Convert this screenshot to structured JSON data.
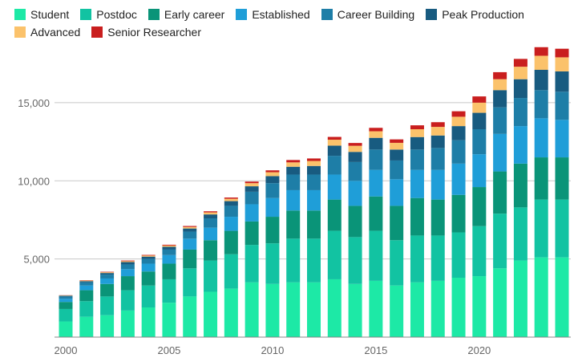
{
  "chart_data": {
    "type": "bar",
    "stacked": true,
    "title": "",
    "xlabel": "",
    "ylabel": "",
    "ylim": [
      0,
      19000
    ],
    "yticks": [
      5000,
      10000,
      15000
    ],
    "ytick_labels": [
      "5,000",
      "10,000",
      "15,000"
    ],
    "xticks": [
      2000,
      2005,
      2010,
      2015,
      2020
    ],
    "xtick_labels": [
      "2000",
      "2005",
      "2010",
      "2015",
      "2020"
    ],
    "grid": "horizontal",
    "legend_position": "top-left",
    "x": [
      2000,
      2001,
      2002,
      2003,
      2004,
      2005,
      2006,
      2007,
      2008,
      2009,
      2010,
      2011,
      2012,
      2013,
      2014,
      2015,
      2016,
      2017,
      2018,
      2019,
      2020,
      2021,
      2022,
      2023,
      2024
    ],
    "series": [
      {
        "name": "Student",
        "color": "#1de9a6",
        "values": [
          1000,
          1300,
          1400,
          1700,
          1900,
          2200,
          2600,
          2900,
          3100,
          3500,
          3400,
          3500,
          3500,
          3700,
          3400,
          3600,
          3300,
          3500,
          3600,
          3800,
          3900,
          4400,
          4900,
          5100,
          5100
        ]
      },
      {
        "name": "Postdoc",
        "color": "#12c3a2",
        "values": [
          800,
          1000,
          1200,
          1300,
          1400,
          1500,
          1800,
          2000,
          2200,
          2400,
          2600,
          2800,
          2800,
          3100,
          3000,
          3200,
          2900,
          3000,
          2900,
          2900,
          3200,
          3500,
          3400,
          3700,
          3700
        ]
      },
      {
        "name": "Early career",
        "color": "#0a9478",
        "values": [
          450,
          700,
          800,
          900,
          900,
          1000,
          1200,
          1300,
          1500,
          1500,
          1700,
          1800,
          1800,
          2000,
          2000,
          2200,
          2200,
          2400,
          2300,
          2400,
          2500,
          2700,
          2800,
          2700,
          2700
        ]
      },
      {
        "name": "Established",
        "color": "#1f9ed8",
        "values": [
          200,
          300,
          350,
          450,
          500,
          550,
          700,
          800,
          900,
          1100,
          1200,
          1300,
          1300,
          1600,
          1600,
          1700,
          1700,
          1800,
          1900,
          2000,
          2100,
          2400,
          2400,
          2500,
          2400
        ]
      },
      {
        "name": "Career Building",
        "color": "#1e7ea7",
        "values": [
          150,
          200,
          250,
          300,
          300,
          350,
          450,
          600,
          700,
          800,
          950,
          1000,
          1000,
          1200,
          1200,
          1300,
          1200,
          1300,
          1400,
          1500,
          1600,
          1700,
          1800,
          1800,
          1800
        ]
      },
      {
        "name": "Peak Production",
        "color": "#185b80",
        "values": [
          50,
          80,
          100,
          150,
          150,
          180,
          200,
          250,
          300,
          350,
          450,
          500,
          550,
          650,
          650,
          750,
          700,
          800,
          800,
          900,
          1050,
          1100,
          1200,
          1300,
          1300
        ]
      },
      {
        "name": "Advanced",
        "color": "#fbc26b",
        "values": [
          20,
          40,
          50,
          60,
          70,
          80,
          100,
          130,
          150,
          200,
          250,
          280,
          320,
          380,
          390,
          420,
          430,
          500,
          550,
          600,
          650,
          700,
          800,
          900,
          900
        ]
      },
      {
        "name": "Senior Researcher",
        "color": "#c91e1e",
        "values": [
          10,
          20,
          30,
          40,
          40,
          50,
          60,
          70,
          80,
          100,
          120,
          150,
          160,
          180,
          180,
          220,
          220,
          250,
          300,
          350,
          400,
          450,
          500,
          550,
          550
        ]
      }
    ]
  }
}
